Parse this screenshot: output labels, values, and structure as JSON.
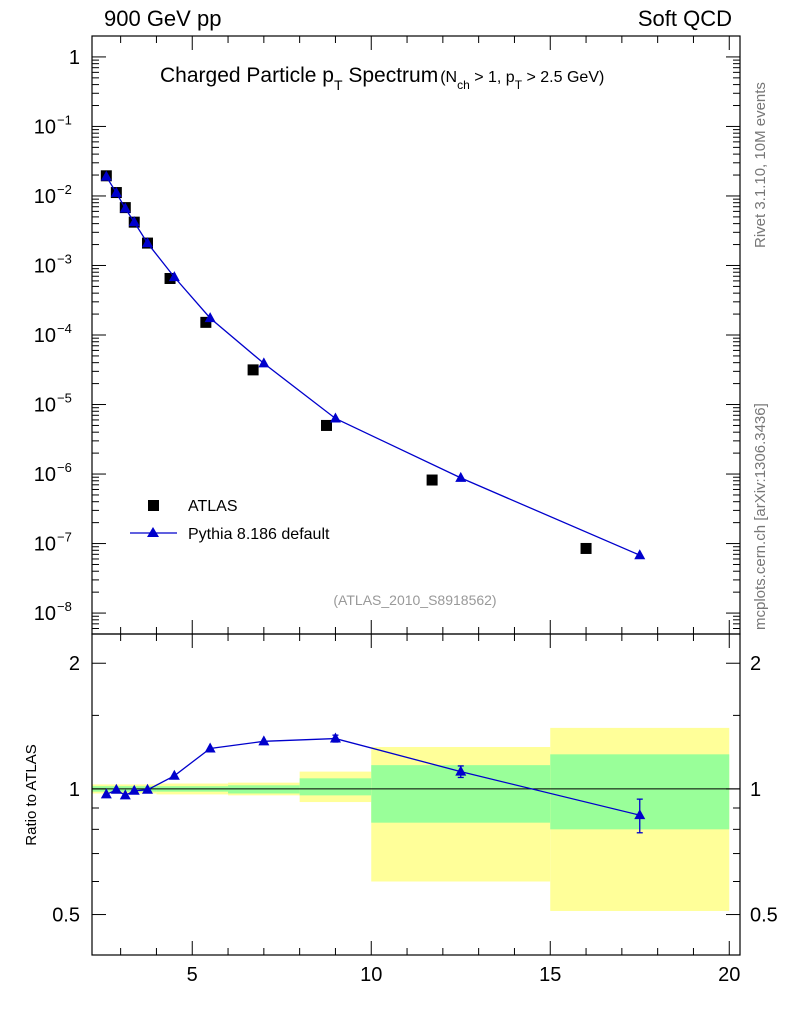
{
  "header": {
    "left": "900 GeV pp",
    "right": "Soft QCD"
  },
  "side_labels": {
    "rivet": "Rivet 3.1.10,  10M events",
    "mcplots": "mcplots.cern.ch [arXiv:1306.3436]"
  },
  "colors": {
    "pythia": "#0000cc",
    "data": "#000000",
    "band_inner": "#99ff99",
    "band_outer": "#ffff99"
  },
  "chart_data": [
    {
      "type": "scatter",
      "title": "Charged Particle p",
      "title_sub": "T",
      "title_rest": " Spectrum",
      "title_cut": "(N",
      "title_cut_sub1": "ch",
      "title_cut_mid": " > 1, p",
      "title_cut_sub2": "T",
      "title_cut_end": " > 2.5 GeV)",
      "watermark": "(ATLAS_2010_S8918562)",
      "yscale": "log",
      "xlim": [
        2.2,
        20.3
      ],
      "ylim": [
        5e-09,
        2
      ],
      "yticks": [
        {
          "v": 1,
          "label": "1"
        },
        {
          "v": 0.1,
          "base": "10",
          "exp": "−1"
        },
        {
          "v": 0.01,
          "base": "10",
          "exp": "−2"
        },
        {
          "v": 0.001,
          "base": "10",
          "exp": "−3"
        },
        {
          "v": 0.0001,
          "base": "10",
          "exp": "−4"
        },
        {
          "v": 1e-05,
          "base": "10",
          "exp": "−5"
        },
        {
          "v": 1e-06,
          "base": "10",
          "exp": "−6"
        },
        {
          "v": 1e-07,
          "base": "10",
          "exp": "−7"
        },
        {
          "v": 1e-08,
          "base": "10",
          "exp": "−8"
        }
      ],
      "legend_position": "bottom-left",
      "series": [
        {
          "name": "ATLAS",
          "marker": "square",
          "x": [
            2.6,
            2.88,
            3.13,
            3.38,
            3.75,
            4.38,
            5.38,
            6.7,
            8.75,
            11.7,
            16.0
          ],
          "y": [
            0.0195,
            0.0112,
            0.0068,
            0.0042,
            0.0021,
            0.00065,
            0.000152,
            3.15e-05,
            5e-06,
            8.2e-07,
            8.5e-08
          ]
        },
        {
          "name": "Pythia 8.186 default",
          "marker": "triangle",
          "x": [
            2.6,
            2.88,
            3.13,
            3.38,
            3.75,
            4.5,
            5.5,
            7.0,
            9.0,
            12.5,
            17.5
          ],
          "y": [
            0.019,
            0.0111,
            0.0066,
            0.0042,
            0.0021,
            0.00068,
            0.000175,
            3.9e-05,
            6.3e-06,
            8.8e-07,
            6.8e-08
          ]
        }
      ]
    },
    {
      "type": "line",
      "ylabel": "Ratio to ATLAS",
      "xlim": [
        2.2,
        20.3
      ],
      "ylim": [
        0.4,
        2.35
      ],
      "xticks": [
        5,
        10,
        15,
        20
      ],
      "yticks": [
        0.5,
        1,
        2
      ],
      "reference": 1,
      "bands": [
        {
          "x0": 2.2,
          "x1": 4,
          "inner": [
            0.985,
            1.015
          ],
          "outer": [
            0.975,
            1.025
          ]
        },
        {
          "x0": 4,
          "x1": 6,
          "inner": [
            0.985,
            1.015
          ],
          "outer": [
            0.97,
            1.03
          ]
        },
        {
          "x0": 6,
          "x1": 8,
          "inner": [
            0.975,
            1.02
          ],
          "outer": [
            0.965,
            1.035
          ]
        },
        {
          "x0": 8,
          "x1": 10,
          "inner": [
            0.965,
            1.06
          ],
          "outer": [
            0.93,
            1.1
          ]
        },
        {
          "x0": 10,
          "x1": 15,
          "inner": [
            0.83,
            1.14
          ],
          "outer": [
            0.6,
            1.26
          ]
        },
        {
          "x0": 15,
          "x1": 20,
          "inner": [
            0.8,
            1.21
          ],
          "outer": [
            0.51,
            1.4
          ]
        }
      ],
      "series": [
        {
          "name": "Pythia 8.186 default",
          "x": [
            2.6,
            2.88,
            3.13,
            3.38,
            3.75,
            4.5,
            5.5,
            7.0,
            9.0,
            12.5,
            17.5
          ],
          "y": [
            0.97,
            0.995,
            0.965,
            0.99,
            0.995,
            1.075,
            1.25,
            1.3,
            1.32,
            1.1,
            0.865
          ],
          "err": [
            0,
            0,
            0,
            0,
            0,
            0,
            0,
            0,
            0.025,
            0.035,
            0.08
          ]
        }
      ]
    }
  ]
}
